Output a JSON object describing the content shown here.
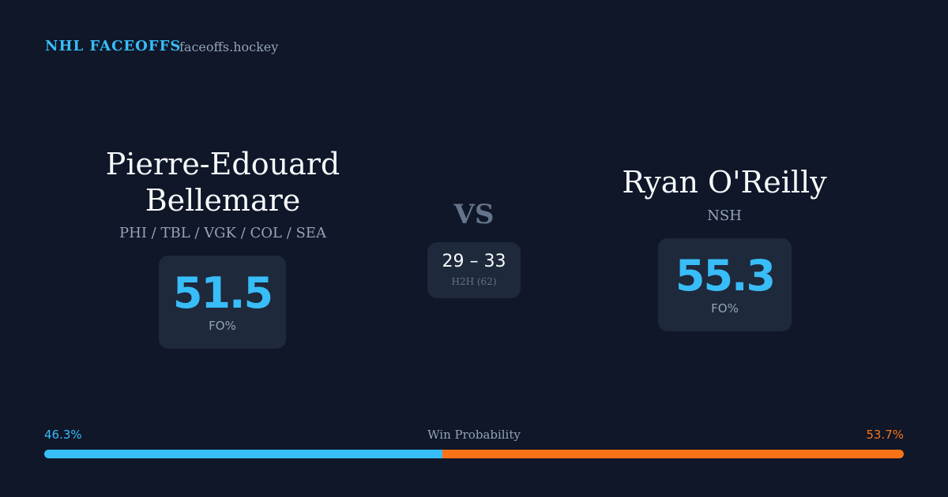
{
  "header": {
    "title": "NHL FACEOFFS",
    "site": "faceoffs.hockey"
  },
  "players": [
    {
      "name": "Pierre-Edouard Bellemare",
      "teams": "PHI / TBL / VGK / COL / SEA",
      "fo_pct": 51.5,
      "fo_label": "FO%"
    },
    {
      "name": "Ryan O'Reilly",
      "teams": "NSH",
      "fo_pct": 55.3,
      "fo_label": "FO%"
    }
  ],
  "versus": {
    "label": "VS",
    "score": "29 – 33",
    "note": "H2H (62)"
  },
  "win_probability": {
    "label": "Win Probability",
    "left": {
      "value": 46.3,
      "label": "46.3%",
      "color": "#38bdf8"
    },
    "right": {
      "value": 53.7,
      "label": "53.7%",
      "color": "#f97316"
    }
  }
}
